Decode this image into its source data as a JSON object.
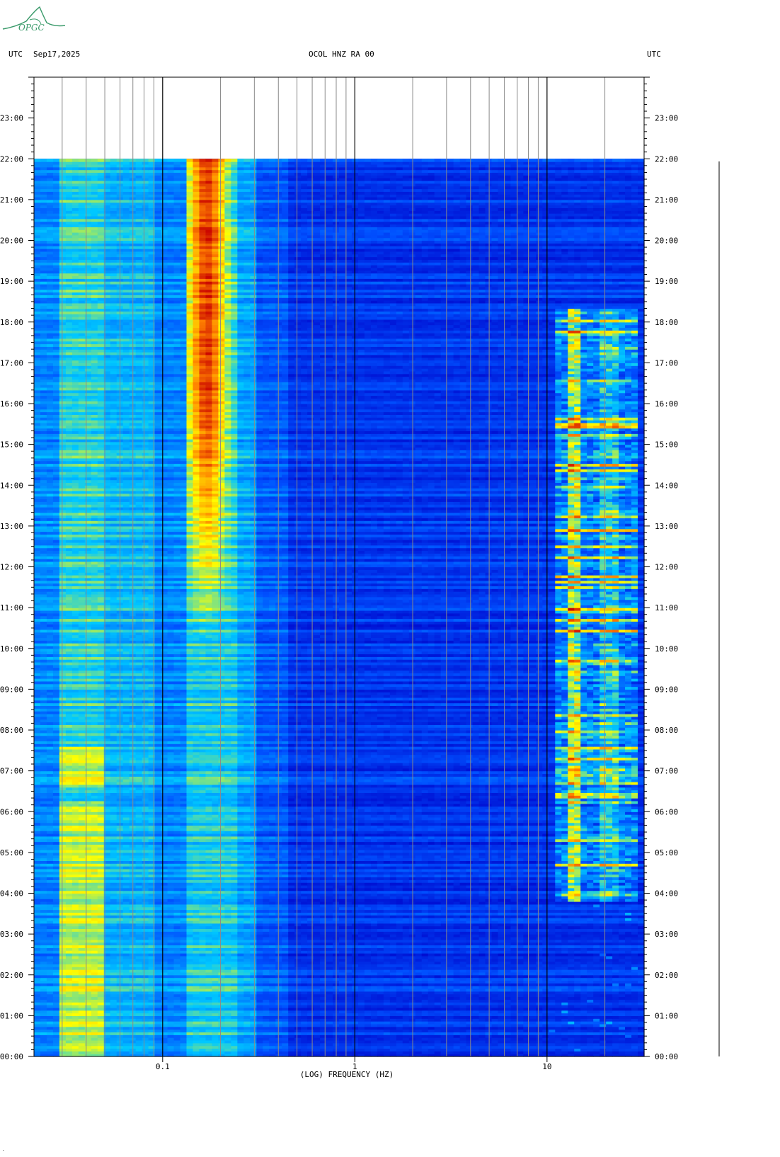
{
  "header": {
    "left_tz": "UTC",
    "date": "Sep17,2025",
    "station": "OCOL HNZ RA 00",
    "right_tz": "UTC"
  },
  "logo": {
    "text": "OPGC",
    "color": "#3a9a6a"
  },
  "chart_data": {
    "type": "heatmap",
    "xlabel": "(LOG) FREQUENCY (HZ)",
    "x_scale": "log",
    "xlim": [
      0.0214,
      32
    ],
    "x_ticks": [
      {
        "value": 0.1,
        "label": "0.1"
      },
      {
        "value": 1,
        "label": "1"
      },
      {
        "value": 10,
        "label": "10"
      }
    ],
    "x_gridlines": [
      0.03,
      0.04,
      0.05,
      0.06,
      0.07,
      0.08,
      0.09,
      0.1,
      0.2,
      0.3,
      0.4,
      0.5,
      0.6,
      0.7,
      0.8,
      0.9,
      1,
      2,
      3,
      4,
      5,
      6,
      7,
      8,
      9,
      10,
      20
    ],
    "y_labels": [
      "00:00",
      "01:00",
      "02:00",
      "03:00",
      "04:00",
      "05:00",
      "06:00",
      "07:00",
      "08:00",
      "09:00",
      "10:00",
      "11:00",
      "12:00",
      "13:00",
      "14:00",
      "15:00",
      "16:00",
      "17:00",
      "18:00",
      "19:00",
      "20:00",
      "21:00",
      "22:00",
      "23:00"
    ],
    "ylim_hours": [
      0,
      24
    ],
    "data_end_hour": 22,
    "colormap": [
      "#0000c8",
      "#0050ff",
      "#00c8ff",
      "#ffff00",
      "#ff8000",
      "#c80000"
    ]
  }
}
